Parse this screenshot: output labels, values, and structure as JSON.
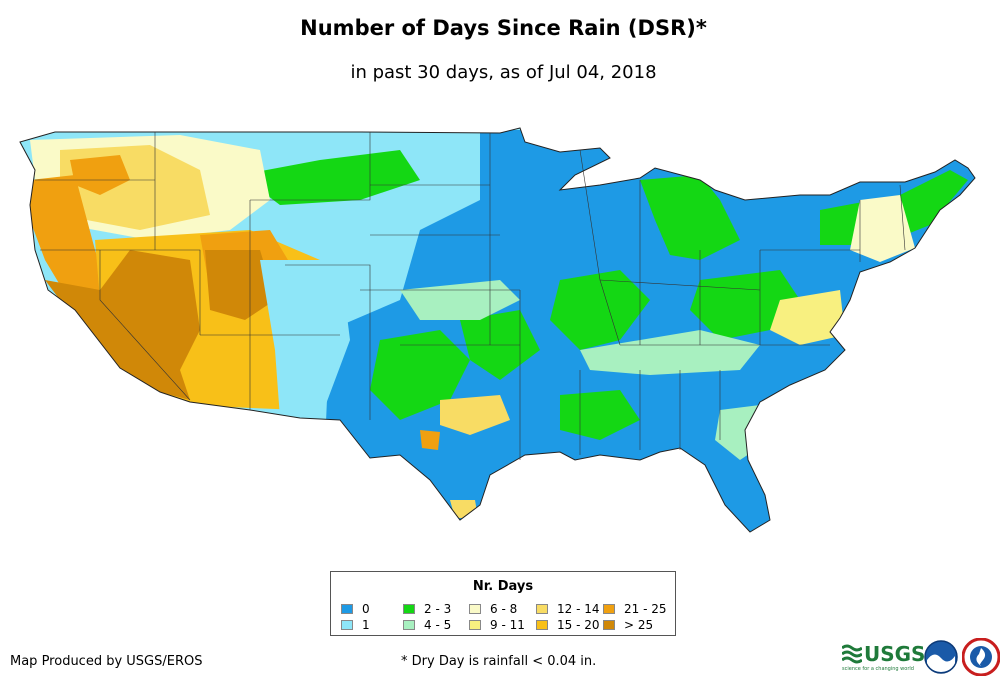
{
  "title": "Number of Days Since Rain (DSR)*",
  "subtitle": "in past 30 days, as of Jul 04, 2018",
  "legend": {
    "title": "Nr. Days",
    "items": [
      {
        "label": "0",
        "color": "#1e9ae5"
      },
      {
        "label": "1",
        "color": "#8ee6f8"
      },
      {
        "label": "2 - 3",
        "color": "#14d714"
      },
      {
        "label": "4 - 5",
        "color": "#a8f0c0"
      },
      {
        "label": "6 - 8",
        "color": "#fafac8"
      },
      {
        "label": "9 - 11",
        "color": "#f8f080"
      },
      {
        "label": "12 - 14",
        "color": "#f8dc64"
      },
      {
        "label": "15 - 20",
        "color": "#f8c018"
      },
      {
        "label": "21 - 25",
        "color": "#f0a010"
      },
      {
        "label": "> 25",
        "color": "#d08808"
      }
    ]
  },
  "credit": "Map Produced by USGS/EROS",
  "footnote": "* Dry Day is rainfall < 0.04 in.",
  "logos": {
    "usgs": "USGS",
    "usgs_tagline": "science for a changing world",
    "icons": [
      "usgs-logo",
      "noaa-logo",
      "nws-logo"
    ]
  }
}
